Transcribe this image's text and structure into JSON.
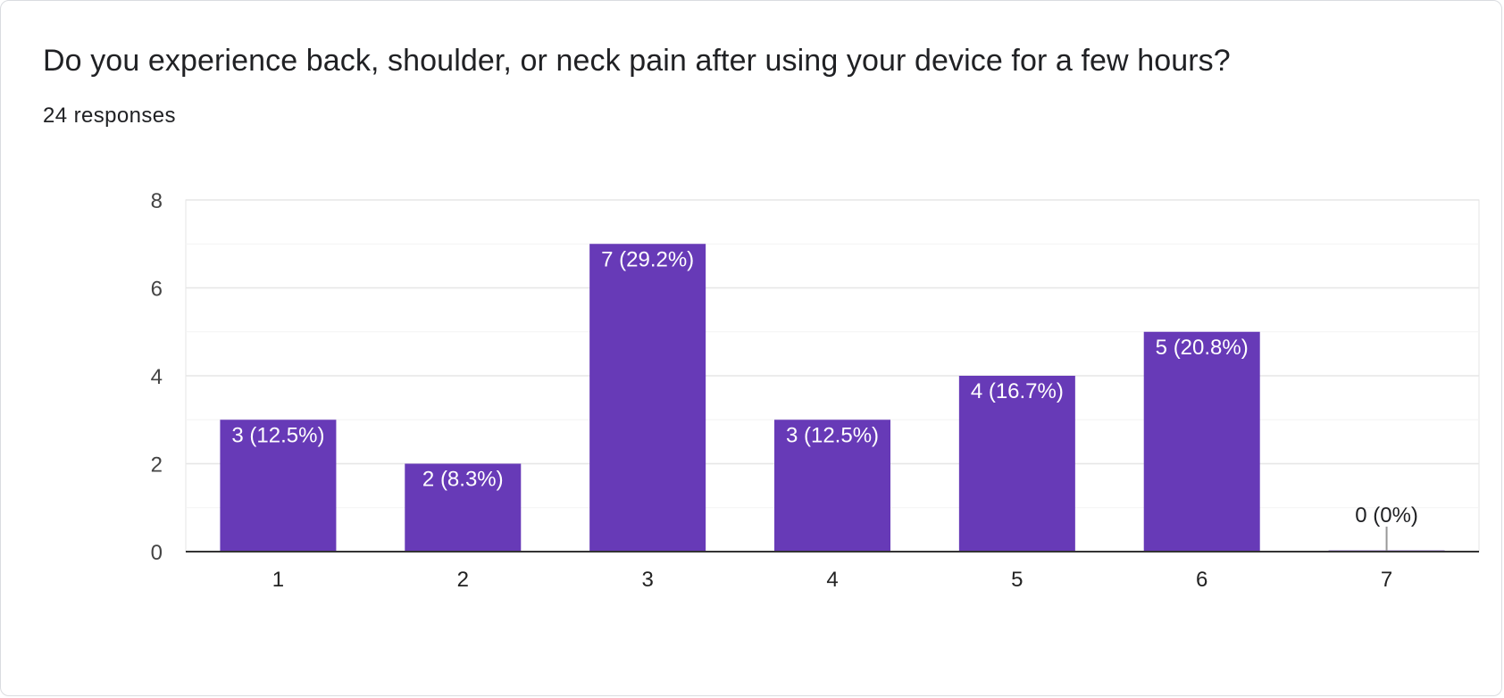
{
  "question": {
    "title": "Do you experience back, shoulder, or neck pain after using your device for a few hours?",
    "responses": "24 responses"
  },
  "colors": {
    "bar": "#673ab7",
    "bar_label": "#ffffff",
    "outside_label": "#202124",
    "axis": "#333333",
    "grid": "#e6e6e6",
    "minor_grid": "#f3f3f3"
  },
  "chart_data": {
    "type": "bar",
    "title": "Do you experience back, shoulder, or neck pain after using your device for a few hours?",
    "categories": [
      "1",
      "2",
      "3",
      "4",
      "5",
      "6",
      "7"
    ],
    "values": [
      3,
      2,
      7,
      3,
      4,
      5,
      0
    ],
    "data_labels": [
      "3 (12.5%)",
      "2 (8.3%)",
      "7 (29.2%)",
      "3 (12.5%)",
      "4 (16.7%)",
      "5 (20.8%)",
      "0 (0%)"
    ],
    "yticks": [
      "0",
      "2",
      "4",
      "6",
      "8"
    ],
    "ylim": [
      0,
      8
    ],
    "grid": true,
    "legend": "none"
  }
}
